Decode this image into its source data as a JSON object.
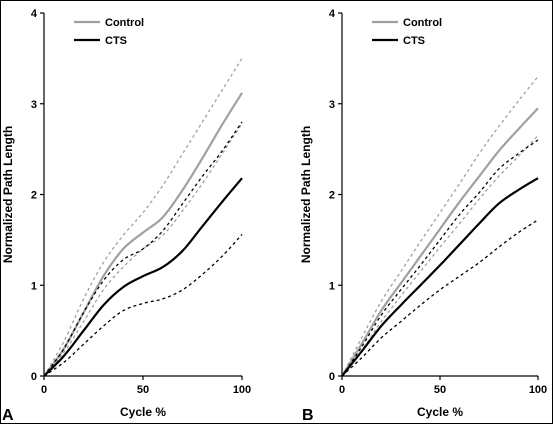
{
  "chart_data": [
    {
      "type": "line",
      "panel_label": "A",
      "xlabel": "Cycle %",
      "ylabel": "Normalized Path Length",
      "xlim": [
        0,
        100
      ],
      "ylim": [
        0,
        4
      ],
      "xticks": [
        "0",
        "50",
        "100"
      ],
      "yticks": [
        "0",
        "1",
        "2",
        "3",
        "4"
      ],
      "legend": {
        "position": "top-left",
        "entries": [
          "Control",
          "CTS"
        ]
      },
      "series": [
        {
          "name": "Control",
          "color": "#a0a0a0",
          "style": "solid",
          "x": [
            0,
            10,
            20,
            30,
            40,
            50,
            60,
            70,
            80,
            90,
            100
          ],
          "y": [
            0,
            0.3,
            0.7,
            1.1,
            1.4,
            1.58,
            1.75,
            2.05,
            2.4,
            2.77,
            3.12
          ]
        },
        {
          "name": "Control +SD",
          "color": "#a0a0a0",
          "style": "dotted",
          "x": [
            0,
            10,
            20,
            30,
            40,
            50,
            60,
            70,
            80,
            90,
            100
          ],
          "y": [
            0,
            0.38,
            0.85,
            1.25,
            1.55,
            1.8,
            2.1,
            2.45,
            2.8,
            3.15,
            3.5
          ]
        },
        {
          "name": "Control -SD",
          "color": "#a0a0a0",
          "style": "dotted",
          "x": [
            0,
            10,
            20,
            30,
            40,
            50,
            60,
            70,
            80,
            90,
            100
          ],
          "y": [
            0,
            0.26,
            0.6,
            0.95,
            1.2,
            1.4,
            1.55,
            1.82,
            2.12,
            2.45,
            2.78
          ]
        },
        {
          "name": "CTS",
          "color": "#000000",
          "style": "solid",
          "x": [
            0,
            10,
            20,
            30,
            40,
            50,
            60,
            70,
            80,
            90,
            100
          ],
          "y": [
            0,
            0.22,
            0.5,
            0.78,
            0.98,
            1.1,
            1.2,
            1.38,
            1.65,
            1.92,
            2.18
          ]
        },
        {
          "name": "CTS +SD",
          "color": "#000000",
          "style": "dotted",
          "x": [
            0,
            10,
            20,
            30,
            40,
            50,
            60,
            70,
            80,
            90,
            100
          ],
          "y": [
            0,
            0.3,
            0.7,
            1.05,
            1.28,
            1.4,
            1.6,
            1.9,
            2.2,
            2.48,
            2.8
          ]
        },
        {
          "name": "CTS -SD",
          "color": "#000000",
          "style": "dotted",
          "x": [
            0,
            10,
            20,
            30,
            40,
            50,
            60,
            70,
            80,
            90,
            100
          ],
          "y": [
            0,
            0.15,
            0.35,
            0.55,
            0.72,
            0.8,
            0.85,
            0.95,
            1.12,
            1.32,
            1.56
          ]
        }
      ]
    },
    {
      "type": "line",
      "panel_label": "B",
      "xlabel": "Cycle %",
      "ylabel": "Normalized Path Length",
      "xlim": [
        0,
        100
      ],
      "ylim": [
        0,
        4
      ],
      "xticks": [
        "0",
        "50",
        "100"
      ],
      "yticks": [
        "0",
        "1",
        "2",
        "3",
        "4"
      ],
      "legend": {
        "position": "top-left",
        "entries": [
          "Control",
          "CTS"
        ]
      },
      "series": [
        {
          "name": "Control",
          "color": "#a0a0a0",
          "style": "solid",
          "x": [
            0,
            10,
            20,
            30,
            40,
            50,
            60,
            70,
            80,
            90,
            100
          ],
          "y": [
            0,
            0.35,
            0.72,
            1.02,
            1.32,
            1.62,
            1.92,
            2.2,
            2.48,
            2.72,
            2.95
          ]
        },
        {
          "name": "Control +SD",
          "color": "#a0a0a0",
          "style": "dotted",
          "x": [
            0,
            10,
            20,
            30,
            40,
            50,
            60,
            70,
            80,
            90,
            100
          ],
          "y": [
            0,
            0.42,
            0.82,
            1.15,
            1.48,
            1.8,
            2.12,
            2.45,
            2.75,
            3.03,
            3.3
          ]
        },
        {
          "name": "Control -SD",
          "color": "#a0a0a0",
          "style": "dotted",
          "x": [
            0,
            10,
            20,
            30,
            40,
            50,
            60,
            70,
            80,
            90,
            100
          ],
          "y": [
            0,
            0.28,
            0.6,
            0.88,
            1.15,
            1.42,
            1.68,
            1.95,
            2.2,
            2.42,
            2.65
          ]
        },
        {
          "name": "CTS",
          "color": "#000000",
          "style": "solid",
          "x": [
            0,
            10,
            20,
            30,
            40,
            50,
            60,
            70,
            80,
            90,
            100
          ],
          "y": [
            0,
            0.27,
            0.55,
            0.78,
            1.0,
            1.22,
            1.45,
            1.68,
            1.9,
            2.05,
            2.18
          ]
        },
        {
          "name": "CTS +SD",
          "color": "#000000",
          "style": "dotted",
          "x": [
            0,
            10,
            20,
            30,
            40,
            50,
            60,
            70,
            80,
            90,
            100
          ],
          "y": [
            0,
            0.32,
            0.67,
            0.95,
            1.22,
            1.5,
            1.78,
            2.02,
            2.28,
            2.45,
            2.6
          ]
        },
        {
          "name": "CTS -SD",
          "color": "#000000",
          "style": "dotted",
          "x": [
            0,
            10,
            20,
            30,
            40,
            50,
            60,
            70,
            80,
            90,
            100
          ],
          "y": [
            0,
            0.2,
            0.42,
            0.6,
            0.78,
            0.95,
            1.1,
            1.25,
            1.42,
            1.58,
            1.72
          ]
        }
      ]
    }
  ]
}
